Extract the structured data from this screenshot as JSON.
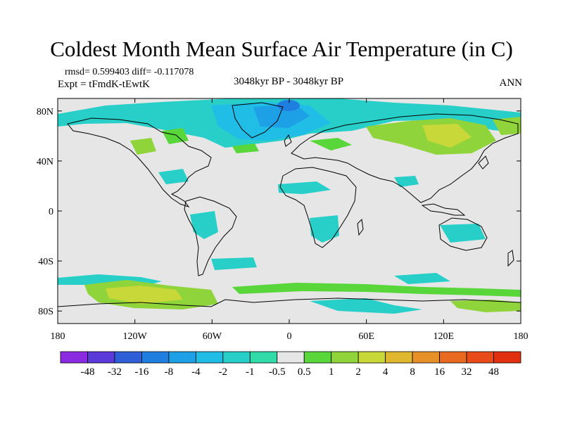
{
  "title": "Coldest Month Mean Surface Air Temperature (in C)",
  "stats_line": "rmsd= 0.599403 diff= -0.117078",
  "experiment": "Expt = tFmdK-tEwtK",
  "period": "3048kyr BP - 3048kyr BP",
  "season": "ANN",
  "lat_ticks": [
    {
      "label": "80N",
      "lat": 80
    },
    {
      "label": "40N",
      "lat": 40
    },
    {
      "label": "0",
      "lat": 0
    },
    {
      "label": "40S",
      "lat": -40
    },
    {
      "label": "80S",
      "lat": -80
    }
  ],
  "lon_ticks": [
    {
      "label": "180",
      "lon": -180
    },
    {
      "label": "120W",
      "lon": -120
    },
    {
      "label": "60W",
      "lon": -60
    },
    {
      "label": "0",
      "lon": 0
    },
    {
      "label": "60E",
      "lon": 60
    },
    {
      "label": "120E",
      "lon": 120
    },
    {
      "label": "180",
      "lon": 180
    }
  ],
  "colorbar": {
    "labels": [
      "-48",
      "-32",
      "-16",
      "-8",
      "-4",
      "-2",
      "-1",
      "-0.5",
      "0.5",
      "1",
      "2",
      "4",
      "8",
      "16",
      "32",
      "48"
    ],
    "colors": [
      "#8a2be2",
      "#5a3ad8",
      "#2f5fd8",
      "#1e7fe0",
      "#1ea0e6",
      "#20bde6",
      "#27cfc8",
      "#30dba8",
      "#e6e6e6",
      "#58d63a",
      "#8fd43a",
      "#c8d838",
      "#e0b830",
      "#e89028",
      "#e86a20",
      "#e84a18",
      "#e03010"
    ]
  },
  "colors": {
    "land_background": "#e6e6e6",
    "coastline": "#000000"
  }
}
